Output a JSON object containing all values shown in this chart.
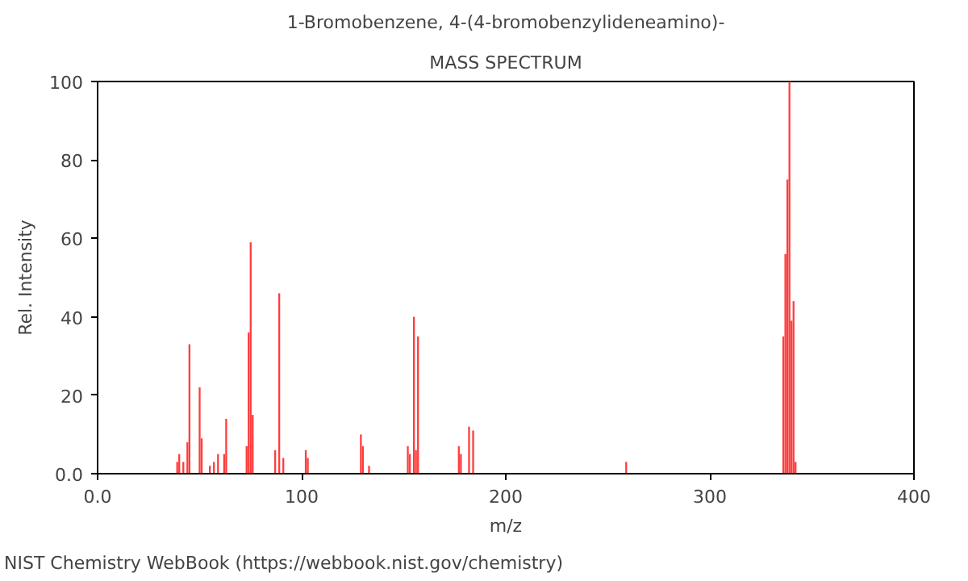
{
  "chart_data": {
    "type": "bar",
    "title": "1-Bromobenzene, 4-(4-bromobenzylideneamino)-",
    "subtitle": "MASS SPECTRUM",
    "xlabel": "m/z",
    "ylabel": "Rel. Intensity",
    "x": [
      39,
      40,
      42,
      44,
      45,
      50,
      51,
      55,
      57,
      59,
      62,
      63,
      73,
      74,
      75,
      76,
      87,
      89,
      91,
      102,
      103,
      129,
      130,
      133,
      152,
      153,
      155,
      156,
      157,
      177,
      178,
      182,
      184,
      259,
      336,
      337,
      338,
      339,
      340,
      341,
      342
    ],
    "values": [
      3,
      5,
      3,
      8,
      33,
      22,
      9,
      2,
      3,
      5,
      5,
      14,
      7,
      36,
      59,
      15,
      6,
      46,
      4,
      6,
      4,
      10,
      7,
      2,
      7,
      5,
      40,
      6,
      35,
      7,
      5,
      12,
      11,
      3,
      35,
      56,
      75,
      100,
      39,
      44,
      3
    ],
    "color": "#ff3b3b",
    "xlim": [
      0,
      400
    ],
    "ylim": [
      0,
      100
    ],
    "xticks": [
      {
        "value": 0,
        "label": "0.0"
      },
      100,
      200,
      300,
      400
    ],
    "yticks": [
      {
        "value": 0,
        "label": "0.0"
      },
      20,
      40,
      60,
      80,
      100
    ],
    "grid": false,
    "annotations": [
      "NIST Chemistry WebBook (https://webbook.nist.gov/chemistry)"
    ]
  }
}
